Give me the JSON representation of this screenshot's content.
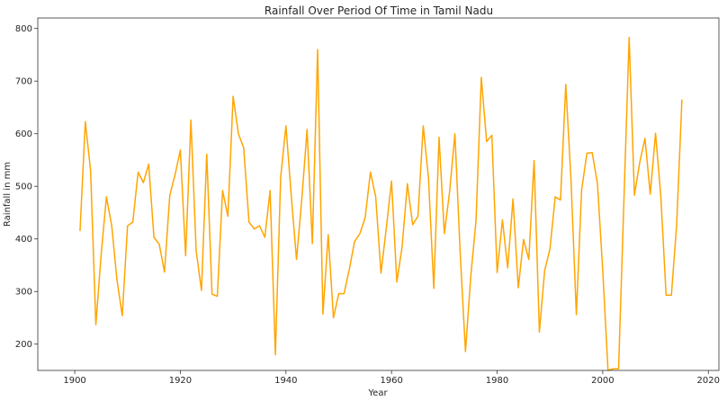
{
  "chart_data": {
    "type": "line",
    "title": "Rainfall Over Period Of Time in Tamil Nadu",
    "xlabel": "Year",
    "ylabel": "Rainfall in mm",
    "xlim": [
      1893,
      2022
    ],
    "ylim": [
      150,
      820
    ],
    "xticks": [
      1900,
      1920,
      1940,
      1960,
      1980,
      2000,
      2020
    ],
    "yticks": [
      200,
      300,
      400,
      500,
      600,
      700,
      800
    ],
    "grid": false,
    "legend": "none",
    "color": "#ffa500",
    "series": [
      {
        "x": [
          1901,
          1902,
          1903,
          1904,
          1905,
          1906,
          1907,
          1908,
          1909,
          1910,
          1911,
          1912,
          1913,
          1914,
          1915,
          1916,
          1917,
          1918,
          1919,
          1920,
          1921,
          1922,
          1923,
          1924,
          1925,
          1926,
          1927,
          1928,
          1929,
          1930,
          1931,
          1932,
          1933,
          1934,
          1935,
          1936,
          1937,
          1938,
          1939,
          1940,
          1941,
          1942,
          1943,
          1944,
          1945,
          1946,
          1947,
          1948,
          1949,
          1950,
          1951,
          1952,
          1953,
          1954,
          1955,
          1956,
          1957,
          1958,
          1959,
          1960,
          1961,
          1962,
          1963,
          1964,
          1965,
          1966,
          1967,
          1968,
          1969,
          1970,
          1971,
          1972,
          1973,
          1974,
          1975,
          1976,
          1977,
          1978,
          1979,
          1980,
          1981,
          1982,
          1983,
          1984,
          1985,
          1986,
          1987,
          1988,
          1989,
          1990,
          1991,
          1992,
          1993,
          1994,
          1995,
          1996,
          1997,
          1998,
          1999,
          2000,
          2001,
          2002,
          2003,
          2004,
          2005,
          2006,
          2007,
          2008,
          2009,
          2010,
          2011,
          2012,
          2013,
          2014,
          2015
        ],
        "values": [
          415,
          623,
          530,
          237,
          370,
          480,
          425,
          322,
          254,
          425,
          432,
          527,
          507,
          542,
          403,
          390,
          337,
          483,
          522,
          569,
          368,
          626,
          377,
          302,
          561,
          295,
          291,
          492,
          443,
          671,
          600,
          573,
          432,
          419,
          425,
          403,
          492,
          180,
          517,
          615,
          483,
          361,
          475,
          608,
          391,
          760,
          257,
          408,
          250,
          296,
          296,
          342,
          395,
          410,
          440,
          527,
          480,
          335,
          420,
          510,
          318,
          385,
          505,
          427,
          443,
          615,
          515,
          306,
          593,
          410,
          490,
          600,
          373,
          186,
          328,
          435,
          707,
          585,
          597,
          336,
          436,
          345,
          476,
          307,
          399,
          361,
          549,
          223,
          340,
          381,
          480,
          474,
          694,
          510,
          256,
          493,
          563,
          564,
          505,
          340,
          150,
          153,
          153,
          470,
          783,
          483,
          545,
          591,
          485,
          601,
          481,
          293,
          293,
          427,
          665
        ]
      }
    ]
  }
}
